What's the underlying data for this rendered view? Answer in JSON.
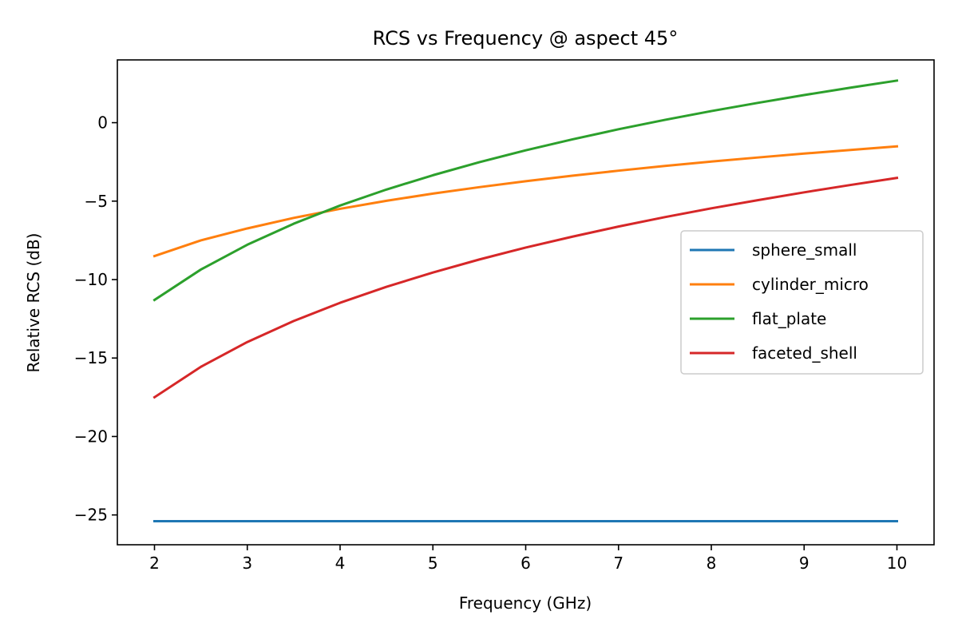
{
  "chart_data": {
    "type": "line",
    "title": "RCS vs Frequency @ aspect 45°",
    "xlabel": "Frequency (GHz)",
    "ylabel": "Relative RCS (dB)",
    "xlim": [
      1.6,
      10.4
    ],
    "ylim": [
      -26.9,
      4.0
    ],
    "xticks": [
      2,
      3,
      4,
      5,
      6,
      7,
      8,
      9,
      10
    ],
    "yticks": [
      0,
      -5,
      -10,
      -15,
      -20,
      -25
    ],
    "ytick_labels": [
      "0",
      "−5",
      "−10",
      "−15",
      "−20",
      "−25"
    ],
    "grid": false,
    "legend_position": "center-right",
    "x": [
      2,
      2.5,
      3,
      3.5,
      4,
      4.5,
      5,
      5.5,
      6,
      6.5,
      7,
      7.5,
      8,
      8.5,
      9,
      9.5,
      10
    ],
    "series": [
      {
        "name": "sphere_small",
        "color": "#1f77b4",
        "values": [
          -25.4,
          -25.4,
          -25.4,
          -25.4,
          -25.4,
          -25.4,
          -25.4,
          -25.4,
          -25.4,
          -25.4,
          -25.4,
          -25.4,
          -25.4,
          -25.4,
          -25.4,
          -25.4,
          -25.4
        ]
      },
      {
        "name": "cylinder_micro",
        "color": "#ff7f0e",
        "values": [
          -8.5,
          -7.5,
          -6.74,
          -6.07,
          -5.49,
          -4.98,
          -4.52,
          -4.11,
          -3.73,
          -3.38,
          -3.06,
          -2.76,
          -2.48,
          -2.22,
          -1.97,
          -1.74,
          -1.51
        ]
      },
      {
        "name": "flat_plate",
        "color": "#2ca02c",
        "values": [
          -11.3,
          -9.36,
          -7.78,
          -6.44,
          -5.28,
          -4.26,
          -3.35,
          -2.52,
          -1.76,
          -1.07,
          -0.42,
          0.18,
          0.74,
          1.26,
          1.76,
          2.23,
          2.68
        ]
      },
      {
        "name": "faceted_shell",
        "color": "#d62728",
        "values": [
          -17.5,
          -15.56,
          -13.98,
          -12.64,
          -11.48,
          -10.46,
          -9.55,
          -8.72,
          -7.96,
          -7.27,
          -6.62,
          -6.02,
          -5.46,
          -4.94,
          -4.44,
          -3.97,
          -3.52
        ]
      }
    ]
  }
}
